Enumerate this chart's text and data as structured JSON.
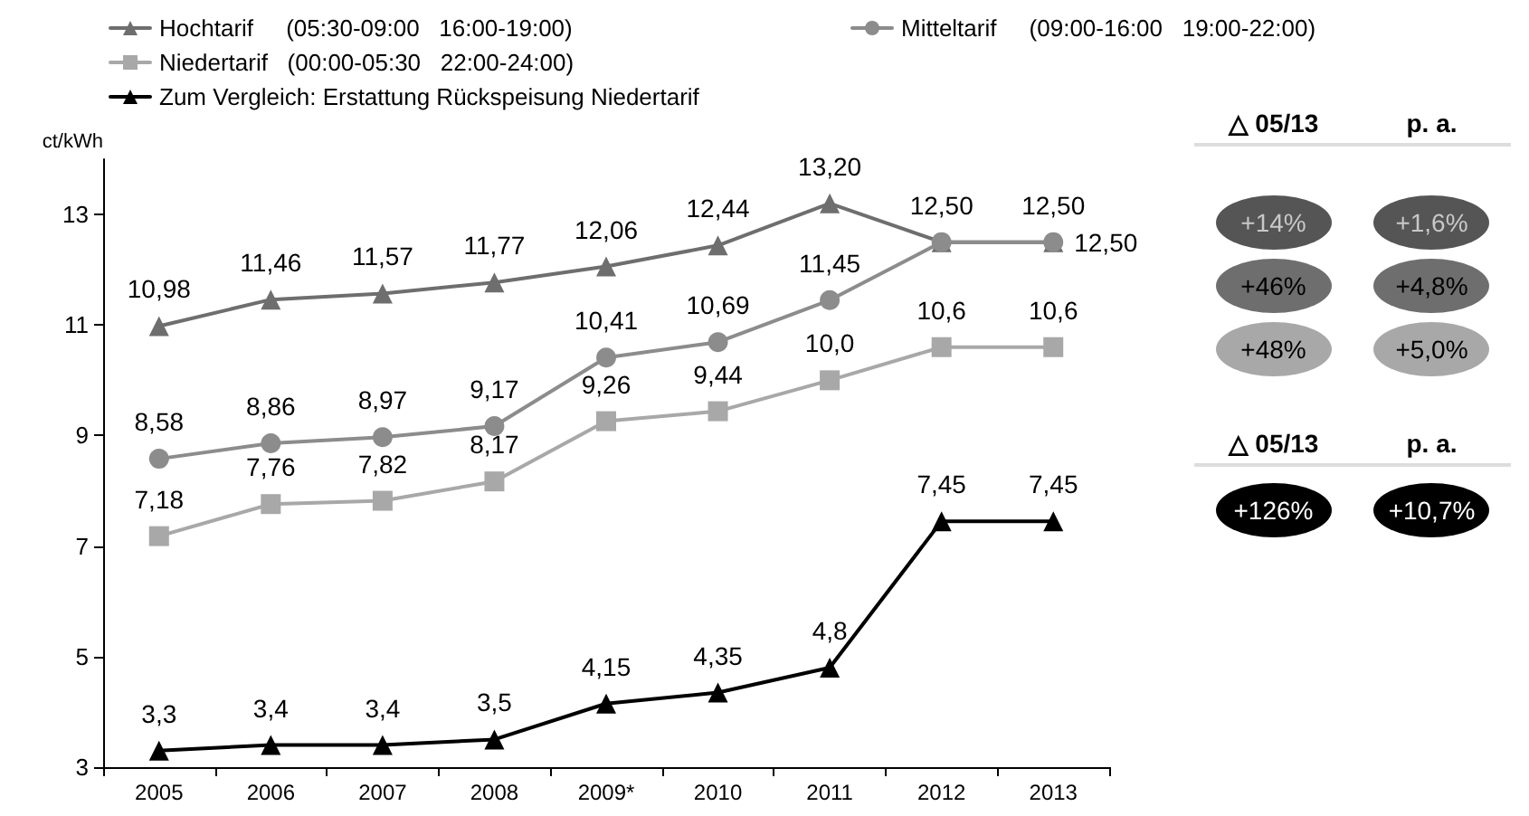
{
  "chart_data": [
    {
      "type": "line",
      "ylabel": "ct/kWh",
      "categories": [
        "2005",
        "2006",
        "2007",
        "2008",
        "2009*",
        "2010",
        "2011",
        "2012",
        "2013"
      ],
      "ylim": [
        3,
        14
      ],
      "yticks": [
        3,
        5,
        7,
        9,
        11,
        13
      ],
      "grid": false,
      "legend": "top",
      "series": [
        {
          "name": "Hochtarif     (05:30-09:00   16:00-19:00)",
          "color": "#6e6e6e",
          "marker": "triangle",
          "values": [
            10.98,
            11.46,
            11.57,
            11.77,
            12.06,
            12.44,
            13.2,
            12.5,
            12.5
          ],
          "value_labels": [
            "10,98",
            "11,46",
            "11,57",
            "11,77",
            "12,06",
            "12,44",
            "13,20",
            "12,50",
            "12,50"
          ]
        },
        {
          "name": "Mitteltarif     (09:00-16:00   19:00-22:00)",
          "color": "#8c8c8c",
          "marker": "circle",
          "values": [
            8.58,
            8.86,
            8.97,
            9.17,
            10.41,
            10.69,
            11.45,
            12.5,
            12.5
          ],
          "value_labels": [
            "8,58",
            "8,86",
            "8,97",
            "9,17",
            "10,41",
            "10,69",
            "11,45",
            null,
            "12,50"
          ]
        },
        {
          "name": "Niedertarif   (00:00-05:30   22:00-24:00)",
          "color": "#a8a8a8",
          "marker": "square",
          "values": [
            7.18,
            7.76,
            7.82,
            8.17,
            9.26,
            9.44,
            10.0,
            10.6,
            10.6
          ],
          "value_labels": [
            "7,18",
            "7,76",
            "7,82",
            "8,17",
            "9,26",
            "9,44",
            "10,0",
            "10,6",
            "10,6"
          ]
        },
        {
          "name": "Zum Vergleich: Erstattung Rückspeisung Niedertarif",
          "color": "#000000",
          "marker": "triangle",
          "values": [
            3.3,
            3.4,
            3.4,
            3.5,
            4.15,
            4.35,
            4.8,
            7.45,
            7.45
          ],
          "value_labels": [
            "3,3",
            "3,4",
            "3,4",
            "3,5",
            "4,15",
            "4,35",
            "4,8",
            "7,45",
            "7,45"
          ]
        }
      ]
    },
    {
      "type": "other",
      "categories": [
        "△ 05/13",
        "p. a."
      ],
      "series": [
        {
          "color": "#555555",
          "values": [
            14,
            1.6
          ],
          "value_labels": [
            "+14%",
            "+1,6%"
          ]
        },
        {
          "color": "#6e6e6e",
          "values": [
            46,
            4.8
          ],
          "value_labels": [
            "+46%",
            "+4,8%"
          ]
        },
        {
          "color": "#a8a8a8",
          "values": [
            48,
            5.0
          ],
          "value_labels": [
            "+48%",
            "+5,0%"
          ]
        }
      ]
    },
    {
      "type": "other",
      "categories": [
        "△ 05/13",
        "p. a."
      ],
      "series": [
        {
          "color": "#000000",
          "values": [
            126,
            10.7
          ],
          "value_labels": [
            "+126%",
            "+10,7%"
          ]
        }
      ]
    }
  ]
}
